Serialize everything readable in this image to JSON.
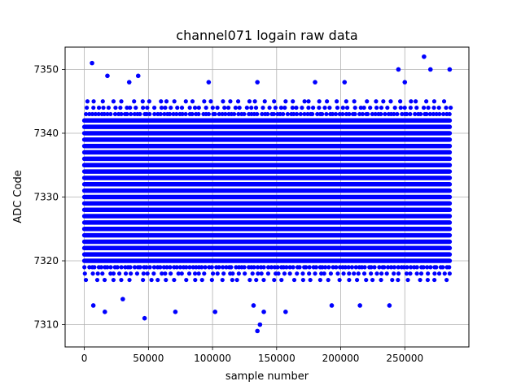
{
  "chart_data": {
    "type": "scatter",
    "title": "channel071 logain raw data",
    "xlabel": "sample number",
    "ylabel": "ADC Code",
    "xlim": [
      -15000,
      300000
    ],
    "ylim": [
      7306.5,
      7353.5
    ],
    "xticks": [
      0,
      50000,
      100000,
      150000,
      200000,
      250000
    ],
    "yticks": [
      7310,
      7320,
      7330,
      7340,
      7350
    ],
    "grid": true,
    "marker_color": "#0000ff",
    "x_range": [
      0,
      285000
    ],
    "dense_band": [
      7317,
      7345
    ],
    "outliers": [
      {
        "x": 6000,
        "y": 7351
      },
      {
        "x": 265000,
        "y": 7352
      },
      {
        "x": 285000,
        "y": 7350
      },
      {
        "x": 245000,
        "y": 7350
      },
      {
        "x": 270000,
        "y": 7350
      },
      {
        "x": 42000,
        "y": 7349
      },
      {
        "x": 18000,
        "y": 7349
      },
      {
        "x": 35000,
        "y": 7348
      },
      {
        "x": 97000,
        "y": 7348
      },
      {
        "x": 135000,
        "y": 7348
      },
      {
        "x": 180000,
        "y": 7348
      },
      {
        "x": 203000,
        "y": 7348
      },
      {
        "x": 250000,
        "y": 7348
      },
      {
        "x": 47000,
        "y": 7311
      },
      {
        "x": 71000,
        "y": 7312
      },
      {
        "x": 16000,
        "y": 7312
      },
      {
        "x": 102000,
        "y": 7312
      },
      {
        "x": 157000,
        "y": 7312
      },
      {
        "x": 132000,
        "y": 7313
      },
      {
        "x": 193000,
        "y": 7313
      },
      {
        "x": 7000,
        "y": 7313
      },
      {
        "x": 137000,
        "y": 7310
      },
      {
        "x": 135000,
        "y": 7309
      },
      {
        "x": 215000,
        "y": 7313
      },
      {
        "x": 238000,
        "y": 7313
      },
      {
        "x": 30000,
        "y": 7314
      },
      {
        "x": 140000,
        "y": 7312
      }
    ]
  }
}
